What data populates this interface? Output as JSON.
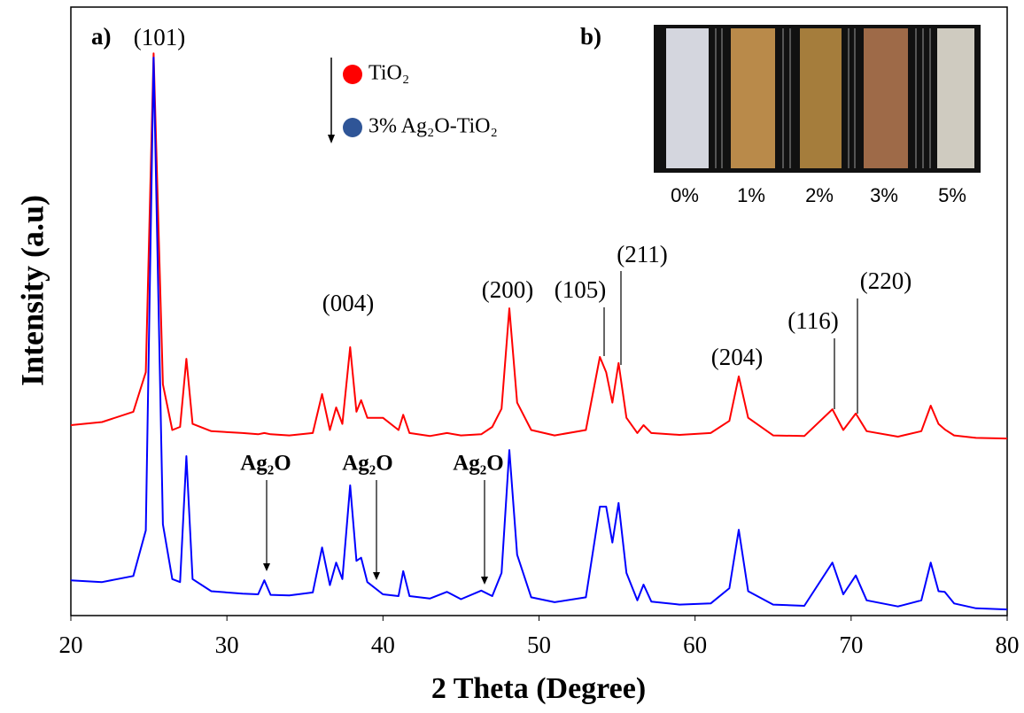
{
  "chart_data": {
    "type": "line",
    "x_label": "2 Theta (Degree)",
    "y_label": "Intensity (a.u)",
    "xlim": [
      20,
      80
    ],
    "ylim": [
      0,
      100
    ],
    "xticks": [
      20,
      30,
      40,
      50,
      60,
      70,
      80
    ],
    "panel_labels": [
      "a)",
      "b)"
    ],
    "peak_labels": [
      "(101)",
      "(004)",
      "(200)",
      "(105)",
      "(211)",
      "(204)",
      "(116)",
      "(220)"
    ],
    "phase_labels": [
      "Ag₂O",
      "Ag₂O",
      "Ag₂O"
    ],
    "inset_labels": [
      "0%",
      "1%",
      "2%",
      "3%",
      "5%"
    ],
    "x": [
      20,
      22,
      24,
      24.8,
      25.3,
      25.9,
      26.5,
      27,
      27.4,
      27.8,
      29,
      31,
      32,
      32.4,
      32.8,
      34,
      35.5,
      36.1,
      36.6,
      37,
      37.4,
      37.9,
      38.3,
      38.6,
      39,
      40,
      41,
      41.3,
      41.7,
      43,
      44.1,
      45,
      46.3,
      47,
      47.6,
      48.1,
      48.6,
      49.5,
      51,
      53,
      53.9,
      54.3,
      54.7,
      55.1,
      55.6,
      56.3,
      56.7,
      57.2,
      59,
      61,
      62.2,
      62.8,
      63.4,
      65,
      67,
      68.8,
      69.5,
      70.3,
      71,
      73,
      74.5,
      75.1,
      75.6,
      76,
      76.6,
      78,
      80
    ],
    "series": [
      {
        "name": "TiO₂",
        "color": "#ff0000",
        "values": [
          31.3,
          31.8,
          33.5,
          40,
          92.4,
          38,
          30.5,
          31,
          42.2,
          31.5,
          30.3,
          30,
          29.8,
          30,
          29.8,
          29.6,
          30,
          36.4,
          30.5,
          34.2,
          31.5,
          44.1,
          33.5,
          35.4,
          32.5,
          32.5,
          30.5,
          33,
          30,
          29.5,
          30,
          29.6,
          29.8,
          31,
          34,
          50.5,
          35,
          30.5,
          29.6,
          30.5,
          42.5,
          40,
          35,
          41.5,
          32.5,
          30,
          31.3,
          30,
          29.7,
          30,
          32,
          39.3,
          32.5,
          29.6,
          29.5,
          33.9,
          30.5,
          33.2,
          30.3,
          29.4,
          30.3,
          34.5,
          31.5,
          30.6,
          29.6,
          29.2,
          29.1
        ]
      },
      {
        "name": "3% Ag₂O-TiO₂",
        "color": "#0000ff",
        "marker_color": "#2f5597",
        "values": [
          5.8,
          5.5,
          6.5,
          14,
          91.7,
          15,
          6,
          5.5,
          26.2,
          6,
          4,
          3.6,
          3.5,
          5.8,
          3.4,
          3.3,
          3.8,
          11.2,
          5,
          8.7,
          6,
          21.4,
          9,
          9.5,
          5.5,
          3.5,
          3.2,
          7.3,
          3.2,
          2.8,
          3.9,
          2.7,
          4.1,
          3.2,
          7,
          27.2,
          10,
          3,
          2.2,
          3,
          17.9,
          17.9,
          12,
          18.5,
          7,
          2.5,
          5.1,
          2.3,
          1.8,
          2,
          4.5,
          14.1,
          4,
          1.8,
          1.6,
          8.7,
          3.5,
          6.6,
          2.5,
          1.5,
          2.5,
          8.7,
          4,
          3.9,
          2,
          1.2,
          1
        ]
      }
    ]
  }
}
